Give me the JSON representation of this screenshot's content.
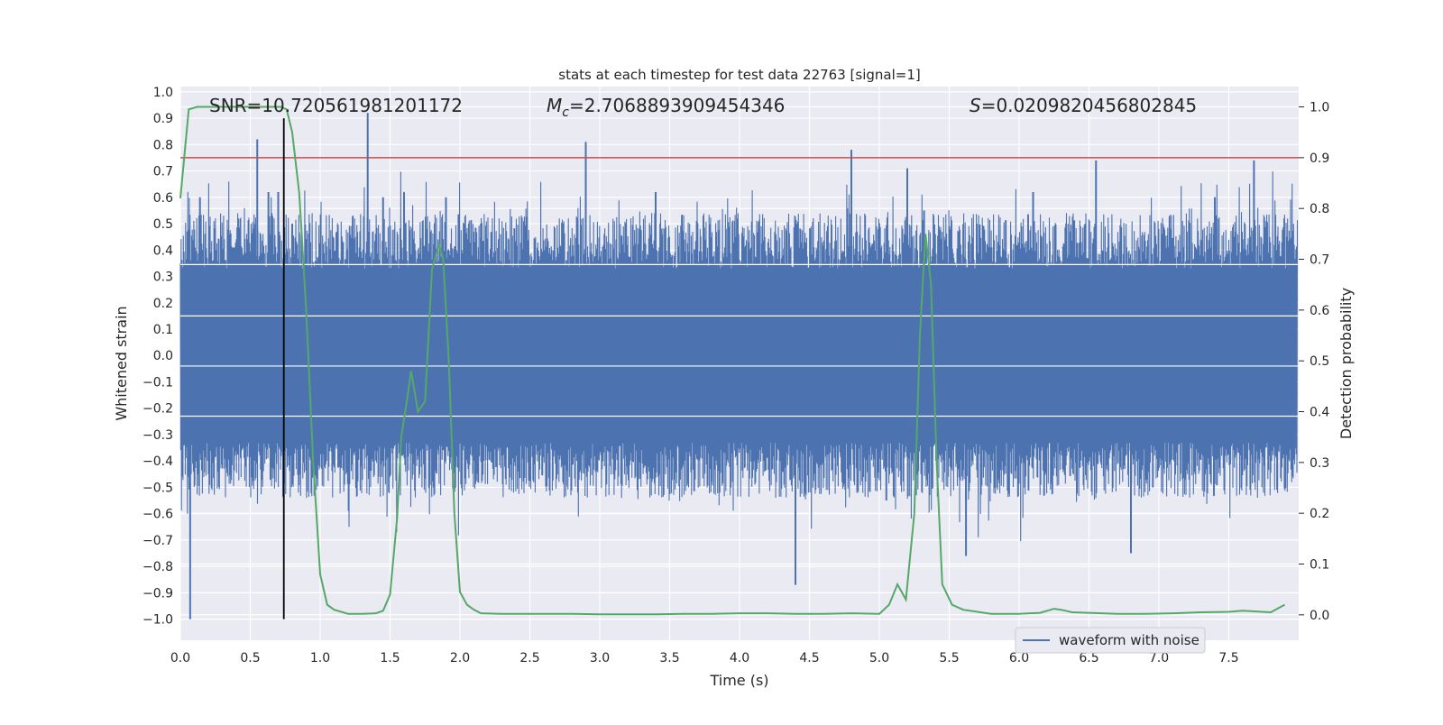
{
  "chart_data": {
    "type": "line",
    "title": "stats at each timestep for test data 22763 [signal=1]",
    "xlabel": "Time (s)",
    "ylabel": "Whitened strain",
    "ylabel_right": "Detection probability",
    "xlim": [
      0.0,
      8.0
    ],
    "ylim": [
      -1.08,
      1.02
    ],
    "ylim_right": [
      -0.05,
      1.04
    ],
    "x_ticks": [
      0.0,
      0.5,
      1.0,
      1.5,
      2.0,
      2.5,
      3.0,
      3.5,
      4.0,
      4.5,
      5.0,
      5.5,
      6.0,
      6.5,
      7.0,
      7.5
    ],
    "x_tick_labels": [
      "0.0",
      "0.5",
      "1.0",
      "1.5",
      "2.0",
      "2.5",
      "3.0",
      "3.5",
      "4.0",
      "4.5",
      "5.0",
      "5.5",
      "6.0",
      "6.5",
      "7.0",
      "7.5"
    ],
    "y_ticks": [
      1.0,
      0.9,
      0.8,
      0.7,
      0.6,
      0.5,
      0.4,
      0.3,
      0.2,
      0.1,
      0.0,
      -0.1,
      -0.2,
      -0.3,
      -0.4,
      -0.5,
      -0.6,
      -0.7,
      -0.8,
      -0.9,
      -1.0
    ],
    "y_tick_labels": [
      "1.0",
      "0.9",
      "0.8",
      "0.7",
      "0.6",
      "0.5",
      "0.4",
      "0.3",
      "0.2",
      "0.1",
      "0.0",
      "−0.1",
      "−0.2",
      "−0.3",
      "−0.4",
      "−0.5",
      "−0.6",
      "−0.7",
      "−0.8",
      "−0.9",
      "−1.0"
    ],
    "y_right_ticks": [
      1.0,
      0.9,
      0.8,
      0.7,
      0.6,
      0.5,
      0.4,
      0.3,
      0.2,
      0.1,
      0.0
    ],
    "y_right_tick_labels": [
      "1.0",
      "0.9",
      "0.8",
      "0.7",
      "0.6",
      "0.5",
      "0.4",
      "0.3",
      "0.2",
      "0.1",
      "0.0"
    ],
    "grid": true,
    "legend_placement": "lower-right",
    "annotations": {
      "snr": "SNR=10.720561981201172",
      "mc_symbol": "M",
      "mc_subscript": "c",
      "mc_value": "=2.7068893909454346",
      "s_symbol": "S",
      "s_value": "=0.0209820456802845"
    },
    "threshold_right_y": 0.9,
    "peak_time_x": 0.74,
    "series": [
      {
        "name": "waveform with noise",
        "axis": "left",
        "style": "dense_oscillation",
        "color": "#4c72b0",
        "band_amplitude": 0.33,
        "typical_amplitude": 0.42,
        "spike_times": [
          0.07,
          0.14,
          0.55,
          0.63,
          0.7,
          0.8,
          1.34,
          1.45,
          1.6,
          1.9,
          2.15,
          2.9,
          3.4,
          4.4,
          4.8,
          5.05,
          5.2,
          5.32,
          5.62,
          6.1,
          6.55,
          6.8,
          7.4,
          7.68
        ],
        "spike_values": [
          -1.0,
          0.6,
          0.82,
          0.62,
          0.62,
          0.5,
          0.92,
          0.6,
          0.62,
          0.6,
          0.5,
          0.81,
          0.62,
          -0.87,
          0.78,
          -0.55,
          0.71,
          0.55,
          -0.76,
          0.62,
          0.74,
          -0.75,
          0.6,
          0.74
        ]
      },
      {
        "name": "detection probability",
        "axis": "right",
        "color": "#55a868",
        "x": [
          0.0,
          0.06,
          0.12,
          0.2,
          0.3,
          0.4,
          0.5,
          0.6,
          0.66,
          0.72,
          0.76,
          0.8,
          0.85,
          0.9,
          0.95,
          1.0,
          1.05,
          1.1,
          1.2,
          1.3,
          1.4,
          1.45,
          1.5,
          1.55,
          1.58,
          1.62,
          1.65,
          1.7,
          1.75,
          1.8,
          1.85,
          1.88,
          1.92,
          1.96,
          2.0,
          2.05,
          2.1,
          2.15,
          2.3,
          2.5,
          2.8,
          3.0,
          3.2,
          3.4,
          3.6,
          3.8,
          4.0,
          4.2,
          4.4,
          4.6,
          4.8,
          5.0,
          5.07,
          5.13,
          5.19,
          5.25,
          5.29,
          5.33,
          5.37,
          5.41,
          5.45,
          5.52,
          5.6,
          5.8,
          6.0,
          6.15,
          6.25,
          6.3,
          6.38,
          6.5,
          6.7,
          6.9,
          7.1,
          7.3,
          7.5,
          7.6,
          7.8,
          7.9
        ],
        "values": [
          0.82,
          0.995,
          1.0,
          1.0,
          1.0,
          1.0,
          1.0,
          1.0,
          1.0,
          1.0,
          0.995,
          0.95,
          0.83,
          0.6,
          0.3,
          0.08,
          0.02,
          0.01,
          0.002,
          0.002,
          0.003,
          0.008,
          0.04,
          0.19,
          0.35,
          0.42,
          0.48,
          0.4,
          0.42,
          0.68,
          0.73,
          0.7,
          0.5,
          0.2,
          0.045,
          0.02,
          0.01,
          0.003,
          0.002,
          0.002,
          0.002,
          0.001,
          0.001,
          0.001,
          0.002,
          0.002,
          0.003,
          0.003,
          0.002,
          0.002,
          0.003,
          0.002,
          0.02,
          0.06,
          0.03,
          0.2,
          0.55,
          0.75,
          0.65,
          0.3,
          0.06,
          0.02,
          0.01,
          0.002,
          0.002,
          0.004,
          0.012,
          0.01,
          0.005,
          0.004,
          0.002,
          0.002,
          0.003,
          0.005,
          0.006,
          0.008,
          0.005,
          0.02
        ]
      }
    ]
  }
}
